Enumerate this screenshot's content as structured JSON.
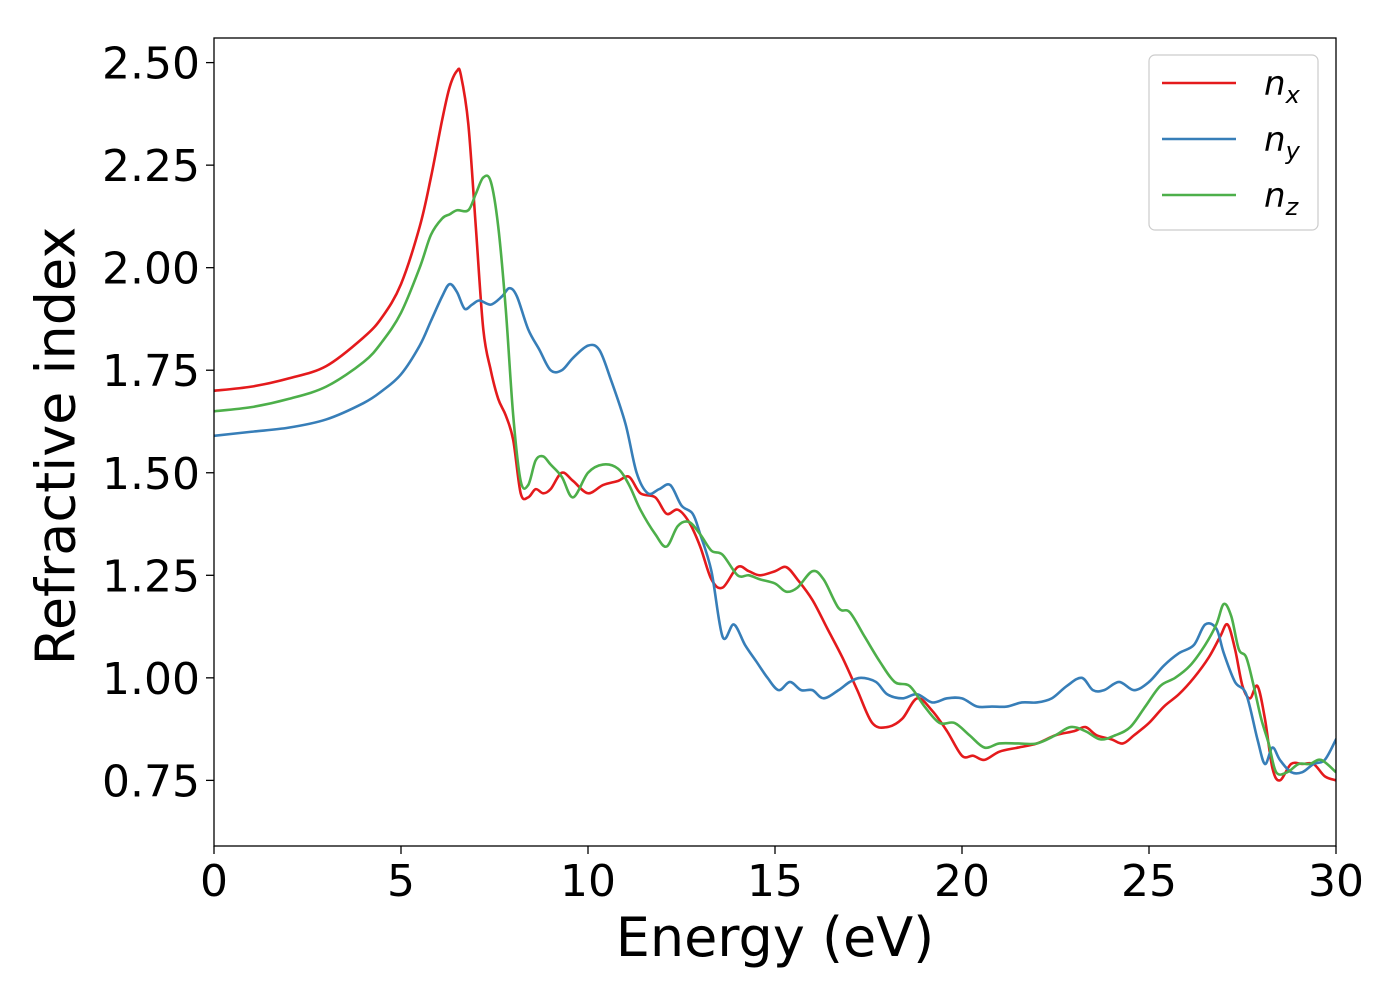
{
  "chart_data": {
    "type": "line",
    "title": "",
    "xlabel": "Energy (eV)",
    "ylabel": "Refractive index",
    "xlim": [
      0,
      30
    ],
    "ylim": [
      0.59,
      2.56
    ],
    "xticks": [
      0,
      5,
      10,
      15,
      20,
      25,
      30
    ],
    "xtick_labels": [
      "0",
      "5",
      "10",
      "15",
      "20",
      "25",
      "30"
    ],
    "yticks": [
      0.75,
      1.0,
      1.25,
      1.5,
      1.75,
      2.0,
      2.25,
      2.5
    ],
    "ytick_labels": [
      "0.75",
      "1.00",
      "1.25",
      "1.50",
      "1.75",
      "2.00",
      "2.25",
      "2.50"
    ],
    "grid": false,
    "legend_position": "top-right",
    "series": [
      {
        "name": "n_x",
        "legend_base": "n",
        "legend_sub": "x",
        "color": "#e41a1c",
        "x": [
          0,
          1,
          2,
          3,
          4,
          4.5,
          5,
          5.5,
          5.8,
          6.1,
          6.3,
          6.5,
          6.6,
          6.8,
          7.0,
          7.2,
          7.4,
          7.6,
          7.8,
          8.0,
          8.2,
          8.4,
          8.6,
          8.8,
          9.0,
          9.3,
          9.6,
          10.0,
          10.4,
          10.8,
          11.1,
          11.4,
          11.8,
          12.1,
          12.4,
          12.7,
          13.0,
          13.3,
          13.6,
          14.0,
          14.3,
          14.6,
          15.0,
          15.3,
          15.6,
          16.0,
          16.4,
          16.8,
          17.2,
          17.6,
          18.0,
          18.4,
          18.8,
          19.2,
          19.6,
          20.0,
          20.3,
          20.6,
          21.0,
          21.5,
          22.0,
          22.5,
          23.0,
          23.3,
          23.6,
          24.0,
          24.3,
          24.6,
          25.0,
          25.4,
          25.8,
          26.2,
          26.6,
          26.9,
          27.1,
          27.3,
          27.5,
          27.7,
          27.9,
          28.1,
          28.3,
          28.5,
          28.8,
          29.1,
          29.4,
          29.7,
          30.0
        ],
        "y": [
          1.7,
          1.71,
          1.73,
          1.76,
          1.83,
          1.88,
          1.96,
          2.1,
          2.22,
          2.36,
          2.44,
          2.48,
          2.47,
          2.35,
          2.1,
          1.85,
          1.75,
          1.68,
          1.64,
          1.58,
          1.45,
          1.44,
          1.46,
          1.45,
          1.46,
          1.5,
          1.48,
          1.45,
          1.47,
          1.48,
          1.49,
          1.45,
          1.44,
          1.4,
          1.41,
          1.38,
          1.32,
          1.24,
          1.22,
          1.27,
          1.26,
          1.25,
          1.26,
          1.27,
          1.24,
          1.19,
          1.12,
          1.05,
          0.97,
          0.89,
          0.88,
          0.9,
          0.95,
          0.92,
          0.87,
          0.81,
          0.81,
          0.8,
          0.82,
          0.83,
          0.84,
          0.86,
          0.87,
          0.88,
          0.86,
          0.85,
          0.84,
          0.86,
          0.89,
          0.93,
          0.96,
          1.0,
          1.05,
          1.1,
          1.13,
          1.07,
          0.98,
          0.95,
          0.98,
          0.9,
          0.78,
          0.75,
          0.79,
          0.79,
          0.79,
          0.76,
          0.75
        ]
      },
      {
        "name": "n_y",
        "legend_base": "n",
        "legend_sub": "y",
        "color": "#377eb8",
        "x": [
          0,
          1,
          2,
          3,
          4,
          4.5,
          5,
          5.5,
          5.8,
          6.1,
          6.3,
          6.5,
          6.7,
          6.9,
          7.1,
          7.4,
          7.7,
          7.9,
          8.1,
          8.4,
          8.7,
          9.0,
          9.3,
          9.6,
          10.0,
          10.3,
          10.6,
          11.0,
          11.3,
          11.6,
          11.9,
          12.2,
          12.5,
          12.8,
          13.0,
          13.3,
          13.6,
          13.9,
          14.2,
          14.5,
          14.8,
          15.1,
          15.4,
          15.7,
          16.0,
          16.3,
          16.7,
          17.0,
          17.3,
          17.7,
          18.0,
          18.4,
          18.8,
          19.2,
          19.6,
          20.0,
          20.4,
          20.8,
          21.2,
          21.6,
          22.0,
          22.4,
          22.8,
          23.2,
          23.5,
          23.8,
          24.2,
          24.6,
          25.0,
          25.4,
          25.8,
          26.2,
          26.5,
          26.8,
          27.0,
          27.3,
          27.6,
          27.9,
          28.1,
          28.3,
          28.5,
          28.8,
          29.1,
          29.4,
          29.7,
          30.0
        ],
        "y": [
          1.59,
          1.6,
          1.61,
          1.63,
          1.67,
          1.7,
          1.74,
          1.81,
          1.87,
          1.93,
          1.96,
          1.94,
          1.9,
          1.91,
          1.92,
          1.91,
          1.93,
          1.95,
          1.93,
          1.85,
          1.8,
          1.75,
          1.75,
          1.78,
          1.81,
          1.8,
          1.73,
          1.62,
          1.5,
          1.45,
          1.46,
          1.47,
          1.42,
          1.4,
          1.35,
          1.26,
          1.1,
          1.13,
          1.08,
          1.04,
          1.0,
          0.97,
          0.99,
          0.97,
          0.97,
          0.95,
          0.97,
          0.99,
          1.0,
          0.99,
          0.96,
          0.95,
          0.96,
          0.94,
          0.95,
          0.95,
          0.93,
          0.93,
          0.93,
          0.94,
          0.94,
          0.95,
          0.98,
          1.0,
          0.97,
          0.97,
          0.99,
          0.97,
          0.99,
          1.03,
          1.06,
          1.08,
          1.13,
          1.12,
          1.06,
          0.99,
          0.96,
          0.85,
          0.79,
          0.83,
          0.8,
          0.77,
          0.77,
          0.79,
          0.8,
          0.85
        ]
      },
      {
        "name": "n_z",
        "legend_base": "n",
        "legend_sub": "z",
        "color": "#4daf4a",
        "x": [
          0,
          1,
          2,
          3,
          4,
          4.5,
          5,
          5.5,
          5.8,
          6.1,
          6.3,
          6.5,
          6.8,
          7.0,
          7.2,
          7.4,
          7.6,
          7.8,
          8.0,
          8.2,
          8.4,
          8.6,
          8.8,
          9.0,
          9.3,
          9.6,
          10.0,
          10.4,
          10.8,
          11.1,
          11.4,
          11.8,
          12.1,
          12.4,
          12.7,
          13.0,
          13.3,
          13.6,
          14.0,
          14.3,
          14.6,
          15.0,
          15.3,
          15.6,
          16.0,
          16.3,
          16.7,
          17.0,
          17.4,
          17.8,
          18.2,
          18.6,
          19.0,
          19.4,
          19.8,
          20.2,
          20.6,
          21.0,
          21.5,
          22.0,
          22.5,
          22.9,
          23.3,
          23.7,
          24.1,
          24.5,
          24.9,
          25.3,
          25.7,
          26.1,
          26.5,
          26.8,
          27.0,
          27.2,
          27.4,
          27.6,
          27.8,
          28.0,
          28.2,
          28.4,
          28.7,
          29.0,
          29.3,
          29.6,
          30.0
        ],
        "y": [
          1.65,
          1.66,
          1.68,
          1.71,
          1.77,
          1.82,
          1.89,
          2.0,
          2.08,
          2.12,
          2.13,
          2.14,
          2.14,
          2.18,
          2.22,
          2.21,
          2.1,
          1.9,
          1.64,
          1.48,
          1.47,
          1.53,
          1.54,
          1.52,
          1.49,
          1.44,
          1.5,
          1.52,
          1.51,
          1.47,
          1.41,
          1.35,
          1.32,
          1.37,
          1.38,
          1.35,
          1.31,
          1.3,
          1.25,
          1.25,
          1.24,
          1.23,
          1.21,
          1.22,
          1.26,
          1.24,
          1.17,
          1.16,
          1.1,
          1.04,
          0.99,
          0.98,
          0.93,
          0.89,
          0.89,
          0.86,
          0.83,
          0.84,
          0.84,
          0.84,
          0.86,
          0.88,
          0.87,
          0.85,
          0.86,
          0.88,
          0.93,
          0.98,
          1.0,
          1.03,
          1.08,
          1.13,
          1.18,
          1.15,
          1.07,
          1.05,
          0.98,
          0.9,
          0.84,
          0.77,
          0.77,
          0.79,
          0.79,
          0.8,
          0.77
        ]
      }
    ]
  }
}
